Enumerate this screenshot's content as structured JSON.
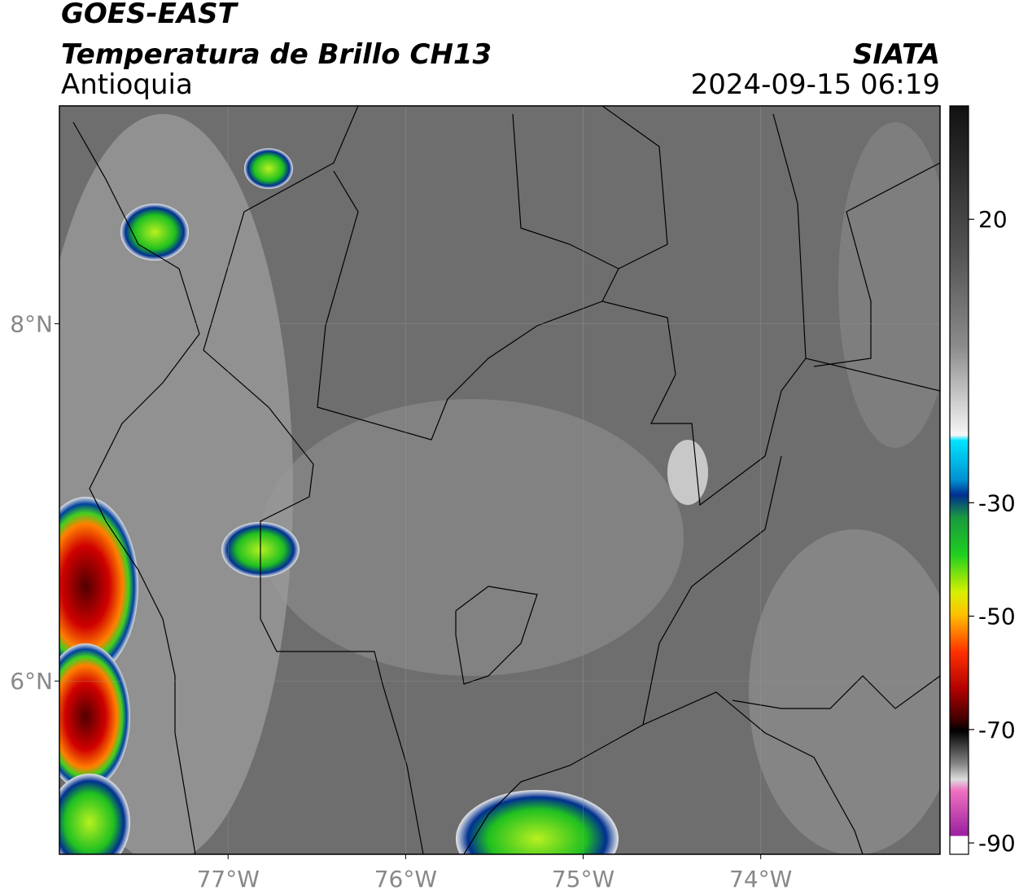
{
  "header": {
    "title": "GOES-EAST",
    "product": "Temperatura de Brillo CH13",
    "region": "Antioquia",
    "source": "SIATA",
    "timestamp": "2024-09-15 06:19"
  },
  "map": {
    "xlim": [
      -77.95,
      -72.99
    ],
    "ylim": [
      5.03,
      9.22
    ],
    "xticks": [
      {
        "value": -77,
        "label": "77°W"
      },
      {
        "value": -76,
        "label": "76°W"
      },
      {
        "value": -75,
        "label": "75°W"
      },
      {
        "value": -74,
        "label": "74°W"
      }
    ],
    "yticks": [
      {
        "value": 8,
        "label": "8°N"
      },
      {
        "value": 6,
        "label": "6°N"
      }
    ],
    "grid": true
  },
  "colorbar": {
    "lim": [
      -92,
      40
    ],
    "ticks": [
      20,
      -30,
      -50,
      -70,
      -90
    ]
  }
}
